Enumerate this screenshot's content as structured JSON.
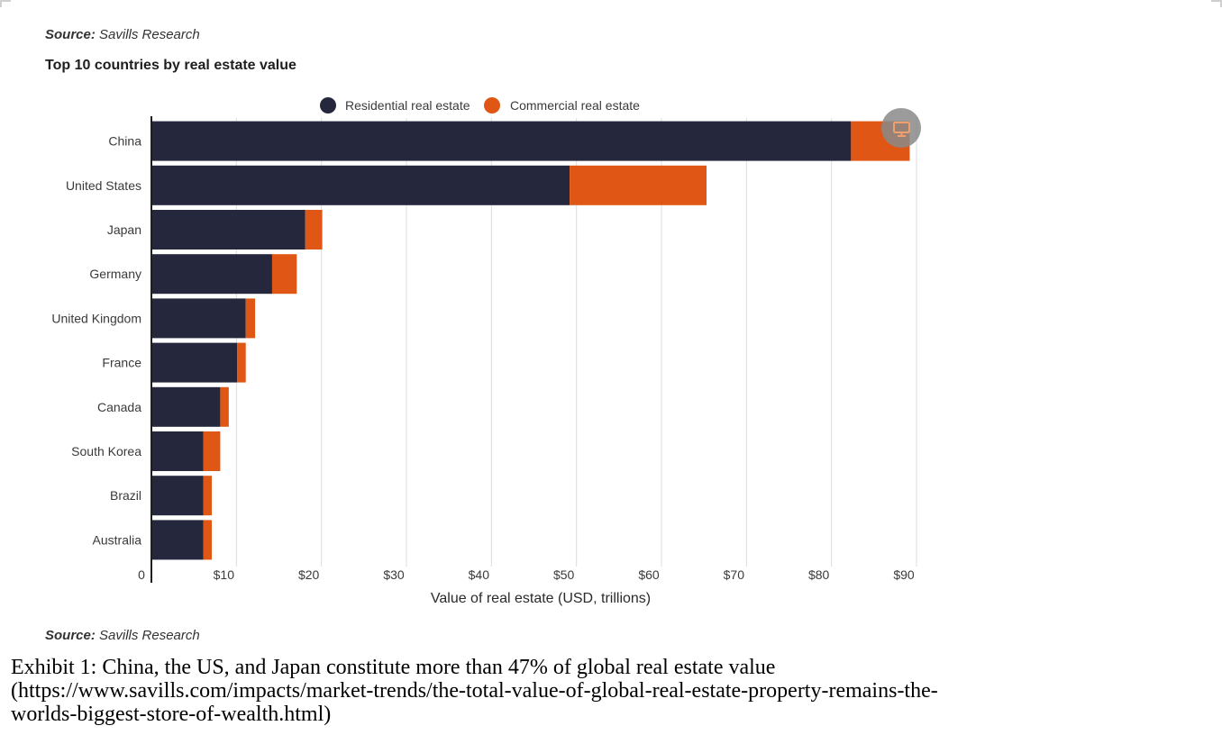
{
  "source_label": "Source:",
  "source_text": "Savills Research",
  "chart_data": {
    "type": "bar",
    "orientation": "horizontal",
    "stacked": true,
    "title": "Top 10 countries by real estate value",
    "xlabel": "Value of real estate (USD, trillions)",
    "ylabel": "",
    "xlim": [
      0,
      90
    ],
    "x_ticks": [
      "0",
      "$10",
      "$20",
      "$30",
      "$40",
      "$50",
      "$60",
      "$70",
      "$80",
      "$90"
    ],
    "categories": [
      "China",
      "United States",
      "Japan",
      "Germany",
      "United Kingdom",
      "France",
      "Canada",
      "South Korea",
      "Brazil",
      "Australia"
    ],
    "series": [
      {
        "name": "Residential real estate",
        "color": "#25283d",
        "values": [
          82.3,
          49.2,
          18.1,
          14.2,
          11.1,
          10.1,
          8.1,
          6.1,
          6.1,
          6.1
        ]
      },
      {
        "name": "Commercial real estate",
        "color": "#e05615",
        "values": [
          6.9,
          16.1,
          2.0,
          2.9,
          1.1,
          1.0,
          1.0,
          2.0,
          1.0,
          1.0
        ]
      }
    ],
    "legend": "top-center",
    "grid": "vertical"
  },
  "overlay_icon": "monitor-icon",
  "caption_lines": [
    "Exhibit 1: China, the US, and Japan constitute more than 47% of global real estate value",
    "(https://www.savills.com/impacts/market-trends/the-total-value-of-global-real-estate-property-remains-the-",
    "worlds-biggest-store-of-wealth.html)"
  ]
}
